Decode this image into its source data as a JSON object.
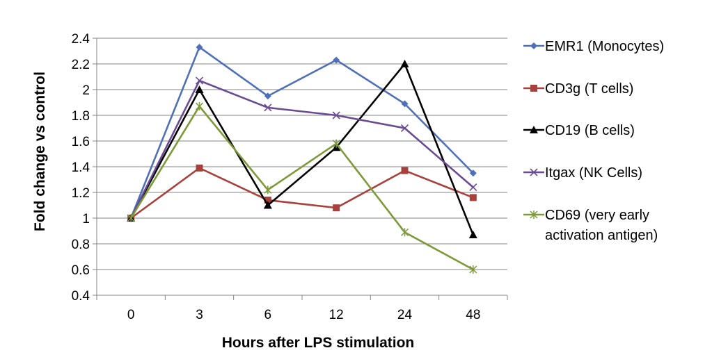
{
  "chart_data": {
    "type": "line",
    "title": "",
    "xlabel": "Hours after LPS stimulation",
    "ylabel": "Fold change vs control",
    "categories": [
      "0",
      "3",
      "6",
      "12",
      "24",
      "48"
    ],
    "ylim": [
      0.4,
      2.4
    ],
    "yticks": [
      0.4,
      0.6,
      0.8,
      1,
      1.2,
      1.4,
      1.6,
      1.8,
      2,
      2.2,
      2.4
    ],
    "ytick_labels": [
      "0.4",
      "0.6",
      "0.8",
      "1",
      "1.2",
      "1.4",
      "1.6",
      "1.8",
      "2",
      "2.2",
      "2.4"
    ],
    "grid": "horizontal",
    "legend_position": "right",
    "series": [
      {
        "name": "EMR1  (Monocytes)",
        "color": "#4f6fb8",
        "marker": "diamond",
        "values": [
          1.0,
          2.33,
          1.95,
          2.23,
          1.89,
          1.35
        ]
      },
      {
        "name": "CD3g (T cells)",
        "color": "#a8403c",
        "marker": "square",
        "values": [
          1.0,
          1.39,
          1.14,
          1.08,
          1.37,
          1.16
        ]
      },
      {
        "name": "CD19 (B cells)",
        "color": "#000000",
        "marker": "triangle",
        "values": [
          1.0,
          2.0,
          1.1,
          1.55,
          2.2,
          0.87
        ]
      },
      {
        "name": "Itgax (NK Cells)",
        "color": "#6a4a93",
        "marker": "x",
        "values": [
          1.0,
          2.07,
          1.86,
          1.8,
          1.7,
          1.24
        ]
      },
      {
        "name": "CD69 (very early activation antigen)",
        "legend_lines": [
          "CD69 (very early",
          "activation antigen)"
        ],
        "color": "#7c9a37",
        "marker": "star",
        "values": [
          1.0,
          1.87,
          1.22,
          1.58,
          0.89,
          0.6
        ]
      }
    ]
  }
}
